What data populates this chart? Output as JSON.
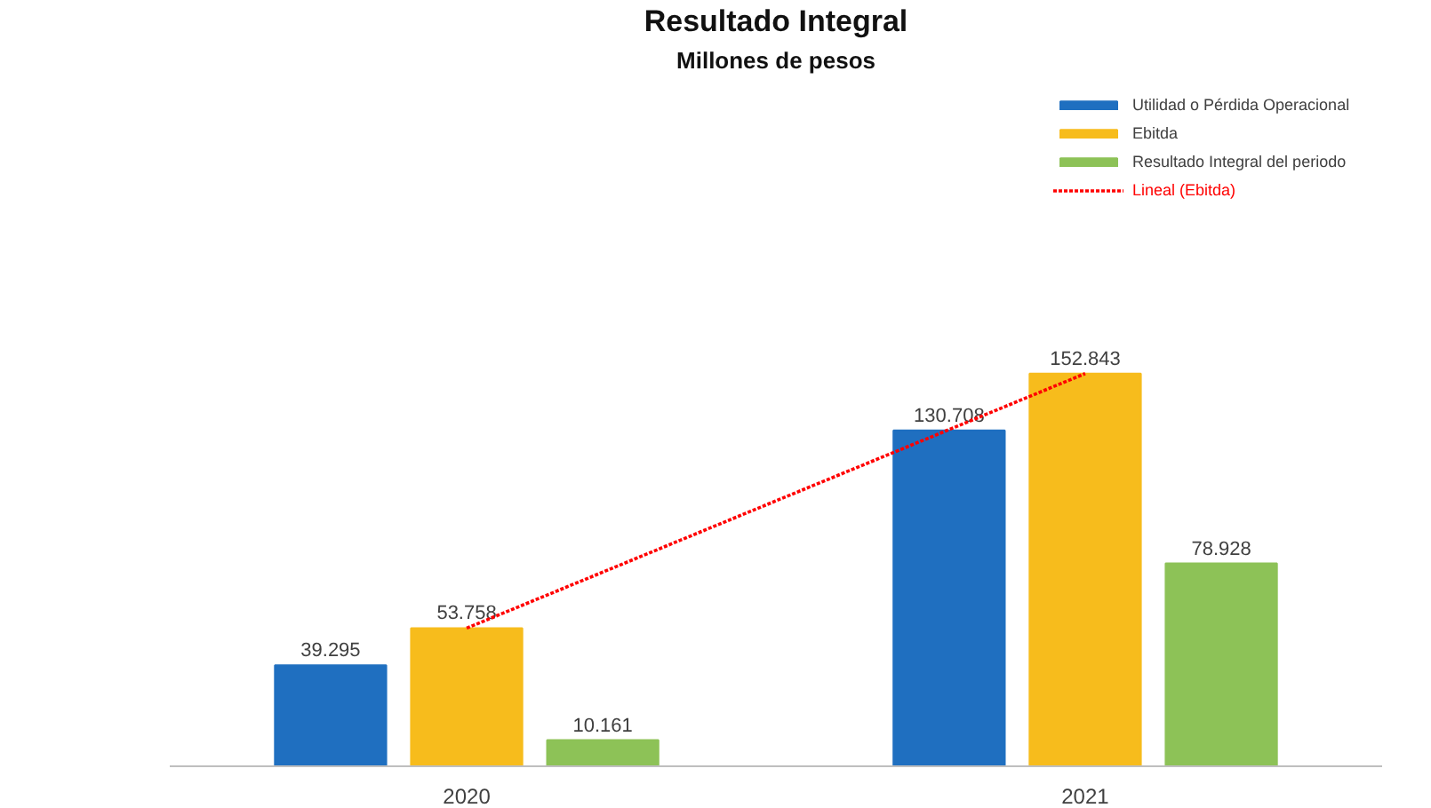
{
  "chart_data": {
    "type": "bar",
    "title": "Resultado Integral",
    "subtitle": "Millones de pesos",
    "categories": [
      "2020",
      "2021"
    ],
    "series": [
      {
        "name": "Utilidad o Pérdida Operacional",
        "color": "#1f6fc0",
        "values": [
          39295,
          130708
        ],
        "value_labels": [
          "39.295",
          "130.708"
        ]
      },
      {
        "name": "Ebitda",
        "color": "#f7bc1c",
        "values": [
          53758,
          152843
        ],
        "value_labels": [
          "53.758",
          "152.843"
        ]
      },
      {
        "name": "Resultado Integral del periodo",
        "color": "#8dc257",
        "values": [
          10161,
          78928
        ],
        "value_labels": [
          "10.161",
          "78.928"
        ]
      },
      {
        "name": "Lineal (Ebitda)",
        "type": "line",
        "color": "#ff0000",
        "values": [
          53758,
          152843
        ]
      }
    ],
    "legend": "top right",
    "line_style": "dotted"
  }
}
